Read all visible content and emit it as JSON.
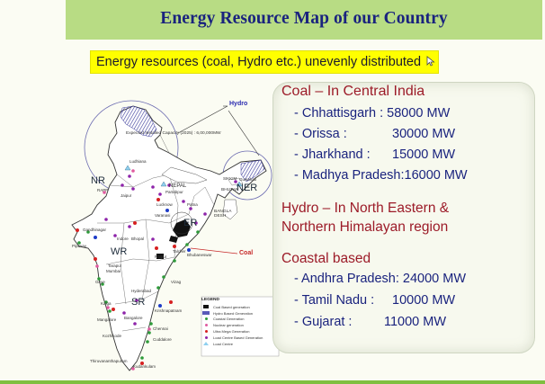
{
  "title": "Energy Resource Map of our Country",
  "subtitle": "Energy resources (coal, Hydro etc.) unevenly distributed",
  "colors": {
    "title_bar": "#b8dc84",
    "title_text": "#1a237e",
    "highlight": "#ffff00",
    "heading_text": "#9c1b28",
    "item_text": "#1a237e"
  },
  "map": {
    "hydro_label": "Hydro",
    "coal_label": "Coal",
    "capacity_note": "Expected Installed Capacity (2025) : 6,00,000MW",
    "regions": {
      "nr": "NR",
      "wr": "WR",
      "sr": "SR",
      "er": "ER",
      "ner": "NER"
    },
    "countries": {
      "nepal": "NEPAL",
      "bhutan": "BHUTAN",
      "bangladesh": "BANGLA DESH",
      "sikkim": "SIKKIM"
    },
    "places": {
      "ludhiana": "Ludhiana",
      "rapp": "RAPP",
      "jaipur": "Jaipur",
      "gandhinagar": "Gandhinagar",
      "pipavav": "Pipavav",
      "indore": "Indore",
      "bhopal": "Bhopal",
      "mundra": "Mundra",
      "mumbai": "Mumbai",
      "tarapur": "Tarapur",
      "girye": "Girye",
      "tarinai": "Tarinai",
      "kaiga": "Kaiga",
      "mangalore": "Mangalore",
      "kozhikode": "Kozhikode",
      "thiruvananthapuram": "Thiruvananthapuram",
      "kudankulam": "Kudankulam",
      "bangalore": "Bangalore",
      "hyderabad": "Hyderabad",
      "krishnapatnam": "Krishnapatnam",
      "cuddalore": "Cuddalore",
      "chennai": "Chennai",
      "north_madras": "North Madras",
      "ennore": "Ennore",
      "vizag": "Vizag",
      "raipur": "Raipur",
      "talcher": "Talcher",
      "sipat": "Sipat",
      "korba": "Korba",
      "ib_valley": "Ib Valley",
      "dhamra": "Dhamra",
      "kolkata": "Kolkata",
      "jamshedpur": "Jamshedpur",
      "lucknow": "Lucknow",
      "varanasi": "Varanasi",
      "patna": "Patna",
      "kanpur": "Kanpur",
      "farakka": "Farakka",
      "sasan": "Sasan",
      "singrauli": "Singrauli",
      "guwahati": "Guwahati",
      "akaltara": "Akaltara",
      "bhubaneswar": "Bhubaneswar",
      "partabpur": "Partabpur",
      "agra": "Agra",
      "jamnagar": "Jamnagar"
    },
    "legend": {
      "title": "LEGEND",
      "items": [
        {
          "label": "Coal Based generation",
          "symbol": "black-square"
        },
        {
          "label": "Hydro Based Generation",
          "symbol": "blue-hatch"
        },
        {
          "label": "Coastal Generation",
          "symbol": "green-dot"
        },
        {
          "label": "Nuclear generation",
          "symbol": "pink-dot"
        },
        {
          "label": "Ultra Mega Generation",
          "symbol": "red-dot"
        },
        {
          "label": "Load Centre Based Generation",
          "symbol": "magenta-dot"
        },
        {
          "label": "Load Centre",
          "symbol": "triangle"
        }
      ]
    }
  },
  "coal": {
    "heading": "Coal – In Central India",
    "items": [
      "- Chhattisgarh : 58000 MW",
      "- Orissa :",
      "30000 MW",
      "- Jharkhand :",
      "15000 MW",
      "- Madhya Pradesh:16000 MW"
    ]
  },
  "hydro": {
    "line1": "Hydro  – In North Eastern &",
    "line2": "Northern Himalayan region"
  },
  "coastal": {
    "heading": "Coastal based",
    "items": [
      "- Andhra Pradesh: 24000 MW",
      "- Tamil Nadu :",
      "10000 MW",
      "- Gujarat :",
      "11000 MW"
    ]
  }
}
